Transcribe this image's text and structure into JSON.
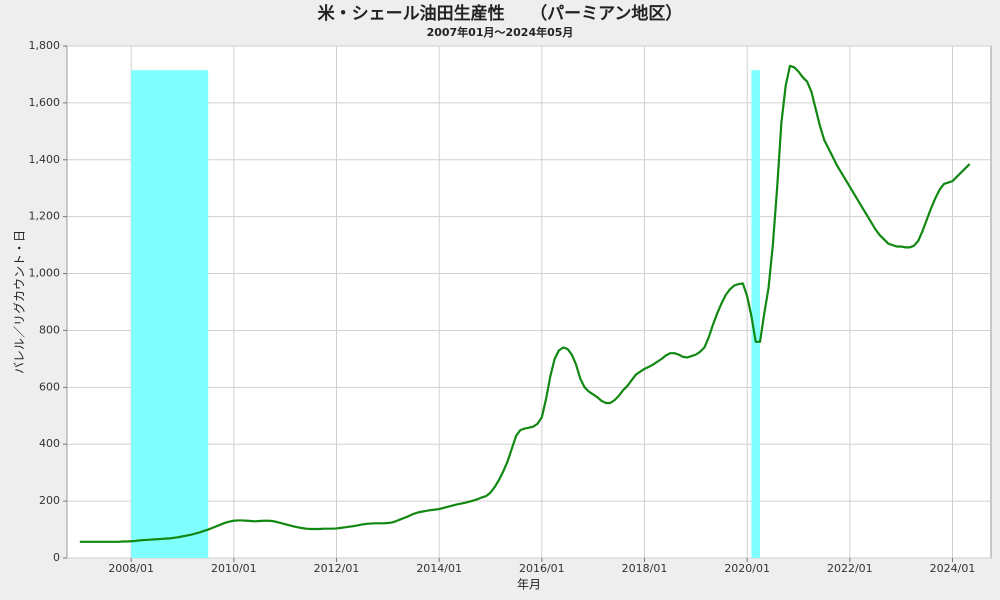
{
  "chart_data": {
    "type": "line",
    "title": "米・シェール油田生産性　　（パーミアン地区）",
    "subtitle": "2007年01月～2024年05月",
    "xlabel": "年月",
    "ylabel": "バレル／リグカウント・日",
    "color": "#118811",
    "grid": true,
    "shade_color": "#80ffff",
    "shaded_periods": [
      {
        "start": "2008/01",
        "end": "2009/07",
        "top": 1715
      },
      {
        "start": "2020/02",
        "end": "2020/04",
        "top": 1715
      }
    ],
    "xlim": [
      "2006/10",
      "2024/10"
    ],
    "xticks": [
      "2008/01",
      "2010/01",
      "2012/01",
      "2014/01",
      "2016/01",
      "2018/01",
      "2020/01",
      "2022/01",
      "2024/01"
    ],
    "ylim": [
      0,
      1800
    ],
    "yticks": [
      0,
      200,
      400,
      600,
      800,
      {
        "value": 1000,
        "label": "1,000"
      },
      {
        "value": 1200,
        "label": "1,200"
      },
      {
        "value": 1400,
        "label": "1,400"
      },
      {
        "value": 1600,
        "label": "1,600"
      },
      {
        "value": 1800,
        "label": "1,800"
      }
    ],
    "x": [
      "2007/01",
      "2007/02",
      "2007/03",
      "2007/04",
      "2007/05",
      "2007/06",
      "2007/07",
      "2007/08",
      "2007/09",
      "2007/10",
      "2007/11",
      "2007/12",
      "2008/01",
      "2008/02",
      "2008/03",
      "2008/04",
      "2008/05",
      "2008/06",
      "2008/07",
      "2008/08",
      "2008/09",
      "2008/10",
      "2008/11",
      "2008/12",
      "2009/01",
      "2009/02",
      "2009/03",
      "2009/04",
      "2009/05",
      "2009/06",
      "2009/07",
      "2009/08",
      "2009/09",
      "2009/10",
      "2009/11",
      "2009/12",
      "2010/01",
      "2010/02",
      "2010/03",
      "2010/04",
      "2010/05",
      "2010/06",
      "2010/07",
      "2010/08",
      "2010/09",
      "2010/10",
      "2010/11",
      "2010/12",
      "2011/01",
      "2011/02",
      "2011/03",
      "2011/04",
      "2011/05",
      "2011/06",
      "2011/07",
      "2011/08",
      "2011/09",
      "2011/10",
      "2011/11",
      "2011/12",
      "2012/01",
      "2012/02",
      "2012/03",
      "2012/04",
      "2012/05",
      "2012/06",
      "2012/07",
      "2012/08",
      "2012/09",
      "2012/10",
      "2012/11",
      "2012/12",
      "2013/01",
      "2013/02",
      "2013/03",
      "2013/04",
      "2013/05",
      "2013/06",
      "2013/07",
      "2013/08",
      "2013/09",
      "2013/10",
      "2013/11",
      "2013/12",
      "2014/01",
      "2014/02",
      "2014/03",
      "2014/04",
      "2014/05",
      "2014/06",
      "2014/07",
      "2014/08",
      "2014/09",
      "2014/10",
      "2014/11",
      "2014/12",
      "2015/01",
      "2015/02",
      "2015/03",
      "2015/04",
      "2015/05",
      "2015/06",
      "2015/07",
      "2015/08",
      "2015/09",
      "2015/10",
      "2015/11",
      "2015/12",
      "2016/01",
      "2016/02",
      "2016/03",
      "2016/04",
      "2016/05",
      "2016/06",
      "2016/07",
      "2016/08",
      "2016/09",
      "2016/10",
      "2016/11",
      "2016/12",
      "2017/01",
      "2017/02",
      "2017/03",
      "2017/04",
      "2017/05",
      "2017/06",
      "2017/07",
      "2017/08",
      "2017/09",
      "2017/10",
      "2017/11",
      "2017/12",
      "2018/01",
      "2018/02",
      "2018/03",
      "2018/04",
      "2018/05",
      "2018/06",
      "2018/07",
      "2018/08",
      "2018/09",
      "2018/10",
      "2018/11",
      "2018/12",
      "2019/01",
      "2019/02",
      "2019/03",
      "2019/04",
      "2019/05",
      "2019/06",
      "2019/07",
      "2019/08",
      "2019/09",
      "2019/10",
      "2019/11",
      "2019/12",
      "2020/01",
      "2020/02",
      "2020/03",
      "2020/04",
      "2020/05",
      "2020/06",
      "2020/07",
      "2020/08",
      "2020/09",
      "2020/10",
      "2020/11",
      "2020/12",
      "2021/01",
      "2021/02",
      "2021/03",
      "2021/04",
      "2021/05",
      "2021/06",
      "2021/07",
      "2021/08",
      "2021/09",
      "2021/10",
      "2021/11",
      "2021/12",
      "2022/01",
      "2022/02",
      "2022/03",
      "2022/04",
      "2022/05",
      "2022/06",
      "2022/07",
      "2022/08",
      "2022/09",
      "2022/10",
      "2022/11",
      "2022/12",
      "2023/01",
      "2023/02",
      "2023/03",
      "2023/04",
      "2023/05",
      "2023/06",
      "2023/07",
      "2023/08",
      "2023/09",
      "2023/10",
      "2023/11",
      "2023/12",
      "2024/01",
      "2024/02",
      "2024/03",
      "2024/04",
      "2024/05"
    ],
    "values": [
      57,
      57,
      57,
      57,
      57,
      57,
      57,
      57,
      57,
      57,
      58,
      58,
      59,
      60,
      62,
      63,
      64,
      65,
      66,
      67,
      68,
      69,
      71,
      73,
      76,
      79,
      82,
      86,
      90,
      95,
      100,
      106,
      112,
      118,
      124,
      128,
      131,
      132,
      132,
      131,
      130,
      129,
      130,
      131,
      131,
      130,
      127,
      123,
      119,
      115,
      111,
      108,
      105,
      103,
      102,
      102,
      102,
      103,
      103,
      103,
      104,
      106,
      108,
      110,
      112,
      115,
      118,
      120,
      121,
      122,
      122,
      122,
      123,
      125,
      130,
      136,
      142,
      148,
      155,
      160,
      163,
      166,
      168,
      170,
      172,
      176,
      180,
      184,
      188,
      191,
      194,
      198,
      202,
      207,
      213,
      218,
      230,
      250,
      275,
      305,
      340,
      385,
      430,
      450,
      455,
      458,
      462,
      472,
      495,
      560,
      640,
      700,
      730,
      740,
      735,
      715,
      680,
      630,
      600,
      585,
      575,
      565,
      552,
      545,
      545,
      555,
      570,
      590,
      605,
      625,
      645,
      655,
      665,
      672,
      680,
      690,
      700,
      712,
      720,
      720,
      715,
      707,
      705,
      710,
      715,
      725,
      740,
      775,
      820,
      860,
      895,
      925,
      945,
      958,
      963,
      965,
      920,
      850,
      760,
      760,
      860,
      950,
      1100,
      1300,
      1530,
      1660,
      1730,
      1725,
      1710,
      1690,
      1675,
      1640,
      1580,
      1520,
      1470,
      1440,
      1410,
      1380,
      1355,
      1330,
      1305,
      1280,
      1255,
      1230,
      1205,
      1180,
      1155,
      1135,
      1120,
      1105,
      1100,
      1095,
      1095,
      1092,
      1092,
      1098,
      1115,
      1150,
      1190,
      1230,
      1265,
      1295,
      1315,
      1320,
      1325,
      1340,
      1355,
      1370,
      1385
    ]
  }
}
